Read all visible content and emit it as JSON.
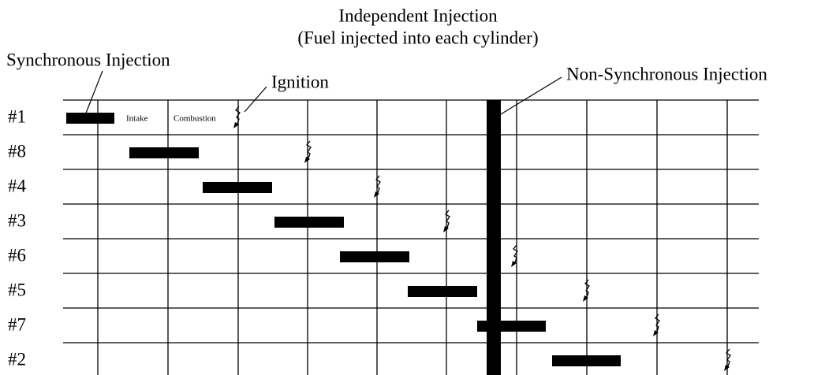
{
  "title": {
    "line1": "Independent Injection",
    "line2": "(Fuel injected into each cylinder)"
  },
  "callouts": {
    "synchronous": "Synchronous Injection",
    "ignition": "Ignition",
    "non_synchronous": "Non-Synchronous Injection"
  },
  "stroke_labels": {
    "intake": "Intake",
    "combustion": "Combustion"
  },
  "cylinders": [
    "#1",
    "#8",
    "#4",
    "#3",
    "#6",
    "#5",
    "#7",
    "#2"
  ]
}
